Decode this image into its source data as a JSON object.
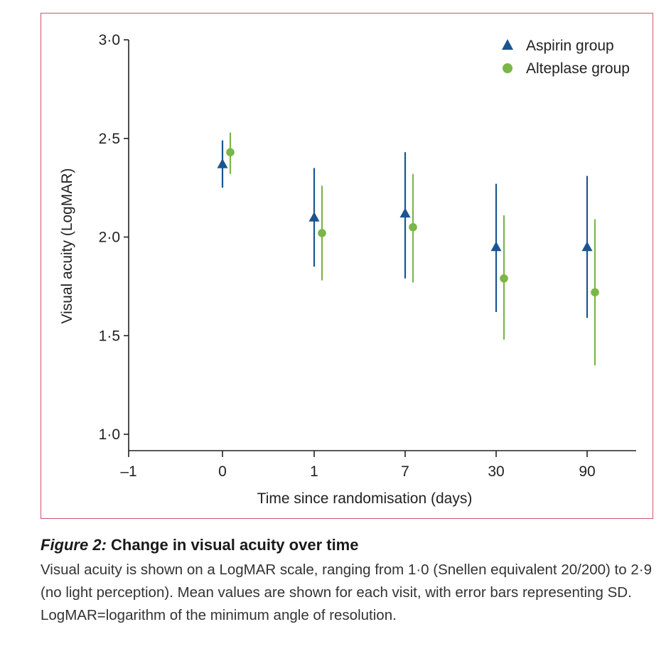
{
  "colors": {
    "aspirin": "#1a5590",
    "alteplase": "#7ab648",
    "frame": "#c9586d",
    "axis": "#222222"
  },
  "chart_data": {
    "type": "scatter",
    "subtype": "mean with SD error bars",
    "xlabel": "Time since randomisation (days)",
    "ylabel": "Visual acuity (LogMAR)",
    "x_categories": [
      "–1",
      "0",
      "1",
      "7",
      "30",
      "90"
    ],
    "y_ticks": [
      "1·0",
      "1·5",
      "2·0",
      "2·5",
      "3·0"
    ],
    "y_tick_values": [
      1.0,
      1.5,
      2.0,
      2.5,
      3.0
    ],
    "ylim": [
      1.0,
      3.0
    ],
    "legend_position": "top-right",
    "series": [
      {
        "name": "Aspirin group",
        "marker": "triangle",
        "color": "#1a5590",
        "x": [
          "0",
          "1",
          "7",
          "30",
          "90"
        ],
        "mean": [
          2.37,
          2.1,
          2.12,
          1.95,
          1.95
        ],
        "sd_low": [
          2.25,
          1.85,
          1.79,
          1.62,
          1.59
        ],
        "sd_high": [
          2.49,
          2.35,
          2.43,
          2.27,
          2.31
        ]
      },
      {
        "name": "Alteplase group",
        "marker": "circle",
        "color": "#7ab648",
        "x": [
          "0",
          "1",
          "7",
          "30",
          "90"
        ],
        "mean": [
          2.43,
          2.02,
          2.05,
          1.79,
          1.72
        ],
        "sd_low": [
          2.32,
          1.78,
          1.77,
          1.48,
          1.35
        ],
        "sd_high": [
          2.53,
          2.26,
          2.32,
          2.11,
          2.09
        ]
      }
    ]
  },
  "caption": {
    "label": "Figure 2:",
    "title": "Change in visual acuity over time",
    "body": "Visual acuity is shown on a LogMAR scale, ranging from 1·0 (Snellen equivalent 20/200) to 2·9 (no light perception). Mean values are shown for each visit, with error bars representing SD. LogMAR=logarithm of the minimum angle of resolution."
  }
}
